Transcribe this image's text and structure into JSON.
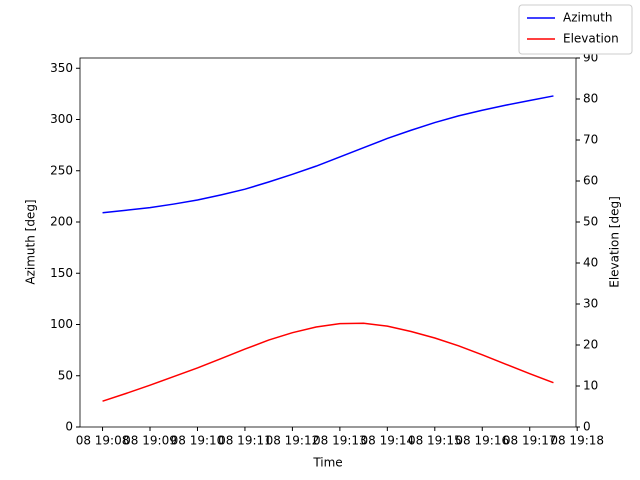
{
  "chart_data": {
    "type": "line",
    "x_label": "Time",
    "y_label": "Azimuth [deg]",
    "y2_label": "Elevation [deg]",
    "x": [
      8,
      8.5,
      9,
      9.5,
      10,
      10.5,
      11,
      11.5,
      12,
      12.5,
      13,
      13.5,
      14,
      14.5,
      15,
      15.5,
      16,
      16.5,
      17,
      17.5
    ],
    "series": [
      {
        "name": "Azimuth",
        "color": "#0000ff",
        "values": [
          209,
          211.5,
          214,
          217.5,
          221.5,
          226.5,
          232,
          239,
          246.5,
          254.5,
          263.5,
          272.5,
          281.5,
          289.5,
          297,
          303.5,
          309,
          314,
          318.5,
          323
        ]
      },
      {
        "name": "Elevation",
        "color": "#ff0000",
        "axis": "y2",
        "values": [
          6.3,
          8.2,
          10.2,
          12.3,
          14.4,
          16.7,
          19.0,
          21.2,
          23.0,
          24.4,
          25.2,
          25.3,
          24.6,
          23.3,
          21.7,
          19.8,
          17.6,
          15.3,
          13.0,
          10.8
        ]
      }
    ],
    "xlim": [
      7.525,
      17.975
    ],
    "xticks": [
      {
        "value": 8,
        "label": "08 19:08"
      },
      {
        "value": 9,
        "label": "08 19:09"
      },
      {
        "value": 10,
        "label": "08 19:10"
      },
      {
        "value": 11,
        "label": "08 19:11"
      },
      {
        "value": 12,
        "label": "08 19:12"
      },
      {
        "value": 13,
        "label": "08 19:13"
      },
      {
        "value": 14,
        "label": "08 19:14"
      },
      {
        "value": 15,
        "label": "08 19:15"
      },
      {
        "value": 16,
        "label": "08 19:16"
      },
      {
        "value": 17,
        "label": "08 19:17"
      },
      {
        "value": 18,
        "label": "08 19:18"
      }
    ],
    "ylim": [
      0,
      360
    ],
    "yticks": [
      0,
      50,
      100,
      150,
      200,
      250,
      300,
      350
    ],
    "y2lim": [
      0,
      90
    ],
    "y2ticks": [
      0,
      10,
      20,
      30,
      40,
      50,
      60,
      70,
      80,
      90
    ],
    "legend": "upper right"
  }
}
